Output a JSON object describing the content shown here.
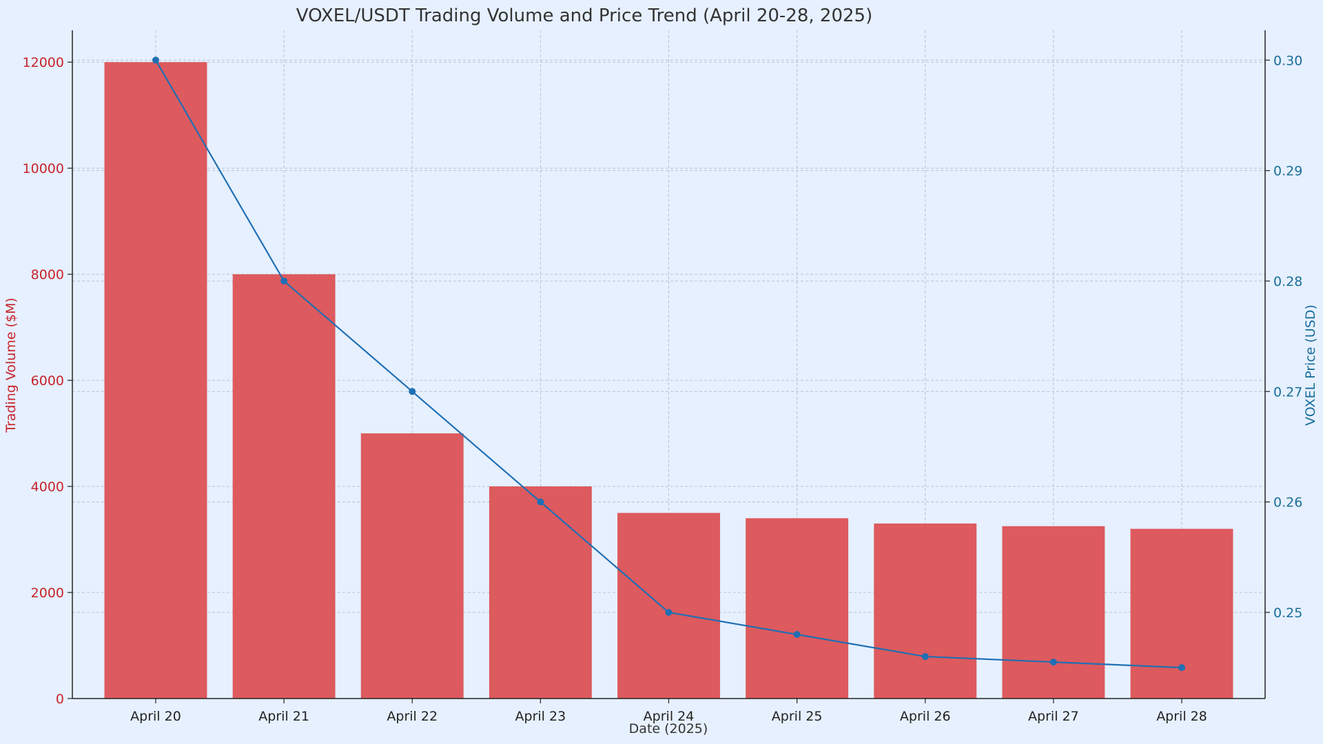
{
  "chart_data": {
    "type": "bar+line",
    "title": "VOXEL/USDT Trading Volume and Price Trend (April 20-28, 2025)",
    "xlabel": "Date (2025)",
    "categories": [
      "April 20",
      "April 21",
      "April 22",
      "April 23",
      "April 24",
      "April 25",
      "April 26",
      "April 27",
      "April 28"
    ],
    "bar_series": {
      "name": "",
      "axis": "left",
      "ylabel": "Trading Volume ($M)",
      "values": [
        12000,
        8000,
        5000,
        4000,
        3500,
        3400,
        3300,
        3250,
        3200
      ],
      "ylim": [
        0,
        12600
      ],
      "ticks": [
        0,
        2000,
        4000,
        6000,
        8000,
        10000,
        12000
      ],
      "tick_labels": [
        "0",
        "2000",
        "4000",
        "6000",
        "8000",
        "10000",
        "12000"
      ],
      "color": "#dd5a5e",
      "label_color": "#c8232c"
    },
    "line_series": {
      "name": "",
      "axis": "right",
      "ylabel": "VOXEL Price (USD)",
      "values": [
        0.3,
        0.28,
        0.27,
        0.26,
        0.25,
        0.248,
        0.246,
        0.2455,
        0.245
      ],
      "ylim": [
        0.2422,
        0.3027
      ],
      "ticks": [
        0.25,
        0.26,
        0.27,
        0.28,
        0.29,
        0.3
      ],
      "tick_labels": [
        "0.25",
        "0.26",
        "0.27",
        "0.28",
        "0.29",
        "0.30"
      ],
      "color": "#1f6fb4",
      "label_color": "#1a6e9a"
    },
    "grid": true,
    "legend": "none"
  }
}
